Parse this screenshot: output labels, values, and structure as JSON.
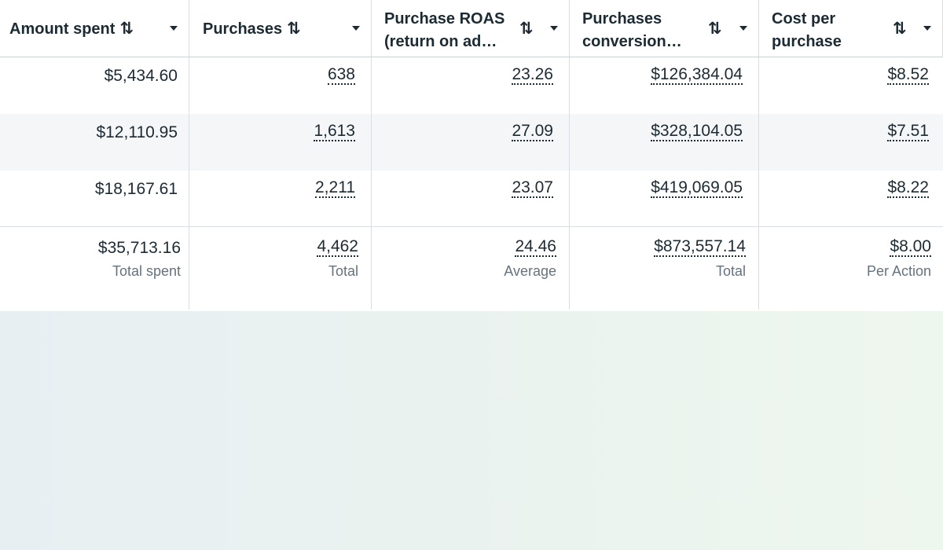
{
  "columns": [
    {
      "label": "Amount spent",
      "sort_icon": "sort-arrows-icon",
      "menu_icon": "caret-down-icon"
    },
    {
      "label": "Purchases",
      "sort_icon": "sort-arrows-icon",
      "menu_icon": "caret-down-icon"
    },
    {
      "label": "Purchase ROAS (return on ad…",
      "sort_icon": "sort-arrows-icon",
      "menu_icon": "caret-down-icon"
    },
    {
      "label": "Purchases conversion…",
      "sort_icon": "sort-arrows-icon",
      "menu_icon": "caret-down-icon"
    },
    {
      "label": "Cost per purchase",
      "sort_icon": "sort-arrows-icon",
      "menu_icon": "caret-down-icon"
    }
  ],
  "sort_glyph": "⇅",
  "rows": [
    [
      "$5,434.60",
      "638",
      "23.26",
      "$126,384.04",
      "$8.52"
    ],
    [
      "$12,110.95",
      "1,613",
      "27.09",
      "$328,104.05",
      "$7.51"
    ],
    [
      "$18,167.61",
      "2,211",
      "23.07",
      "$419,069.05",
      "$8.22"
    ]
  ],
  "totals": [
    {
      "value": "$35,713.16",
      "label": "Total spent"
    },
    {
      "value": "4,462",
      "label": "Total"
    },
    {
      "value": "24.46",
      "label": "Average"
    },
    {
      "value": "$873,557.14",
      "label": "Total"
    },
    {
      "value": "$8.00",
      "label": "Per Action"
    }
  ],
  "colors": {
    "text": "#1c2b33",
    "muted": "#65737e",
    "row_alt": "#f4f6f7",
    "divider": "#dadde1"
  }
}
